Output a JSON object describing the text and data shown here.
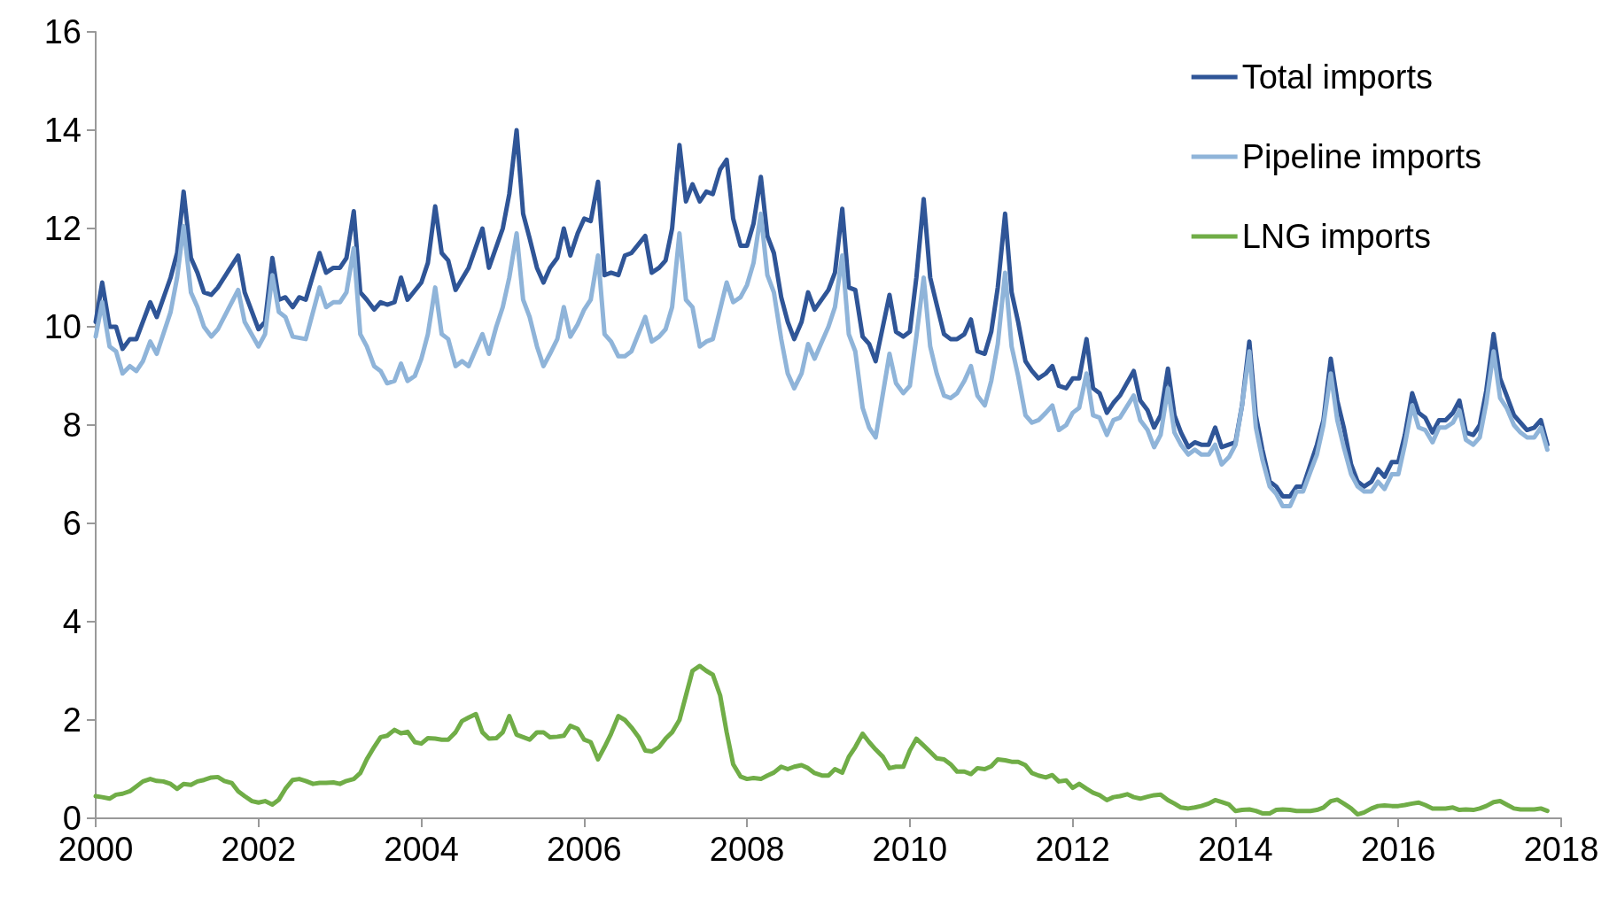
{
  "chart_data": {
    "type": "line",
    "xlim": [
      2000,
      2018
    ],
    "xticks": [
      2000,
      2002,
      2004,
      2006,
      2008,
      2010,
      2012,
      2014,
      2016,
      2018
    ],
    "ylim": [
      0,
      16
    ],
    "yticks": [
      0,
      2,
      4,
      6,
      8,
      10,
      12,
      14,
      16
    ],
    "grid": false,
    "legend": "top right",
    "marker": "none",
    "line_style": "solid",
    "series": [
      {
        "name": "Total imports",
        "color": "#2f5597",
        "x": [
          2000.0,
          2000.08,
          2000.17,
          2000.25,
          2000.33,
          2000.42,
          2000.5,
          2000.67,
          2000.75,
          2000.92,
          2001.0,
          2001.08,
          2001.17,
          2001.25,
          2001.33,
          2001.42,
          2001.5,
          2001.75,
          2001.83,
          2002.0,
          2002.08,
          2002.17,
          2002.25,
          2002.33,
          2002.42,
          2002.5,
          2002.58,
          2002.75,
          2002.83,
          2002.92,
          2003.0,
          2003.08,
          2003.17,
          2003.25,
          2003.33,
          2003.42,
          2003.5,
          2003.58,
          2003.67,
          2003.75,
          2003.83,
          2004.0,
          2004.08,
          2004.17,
          2004.25,
          2004.33,
          2004.42,
          2004.58,
          2004.75,
          2004.83,
          2005.0,
          2005.08,
          2005.17,
          2005.25,
          2005.33,
          2005.42,
          2005.5,
          2005.58,
          2005.67,
          2005.75,
          2005.83,
          2005.92,
          2006.0,
          2006.08,
          2006.17,
          2006.25,
          2006.33,
          2006.42,
          2006.5,
          2006.58,
          2006.75,
          2006.83,
          2006.92,
          2007.0,
          2007.08,
          2007.17,
          2007.25,
          2007.33,
          2007.42,
          2007.5,
          2007.58,
          2007.67,
          2007.75,
          2007.83,
          2007.92,
          2008.0,
          2008.08,
          2008.17,
          2008.25,
          2008.33,
          2008.42,
          2008.5,
          2008.58,
          2008.67,
          2008.75,
          2008.83,
          2009.0,
          2009.08,
          2009.17,
          2009.25,
          2009.33,
          2009.42,
          2009.5,
          2009.58,
          2009.75,
          2009.83,
          2009.92,
          2010.0,
          2010.08,
          2010.17,
          2010.25,
          2010.33,
          2010.42,
          2010.5,
          2010.58,
          2010.67,
          2010.75,
          2010.83,
          2010.92,
          2011.0,
          2011.08,
          2011.17,
          2011.25,
          2011.33,
          2011.42,
          2011.5,
          2011.58,
          2011.67,
          2011.75,
          2011.83,
          2011.92,
          2012.0,
          2012.08,
          2012.17,
          2012.25,
          2012.33,
          2012.42,
          2012.5,
          2012.58,
          2012.75,
          2012.83,
          2012.92,
          2013.0,
          2013.08,
          2013.17,
          2013.25,
          2013.33,
          2013.42,
          2013.5,
          2013.58,
          2013.67,
          2013.75,
          2013.83,
          2014.0,
          2014.08,
          2014.17,
          2014.25,
          2014.33,
          2014.42,
          2014.5,
          2014.58,
          2014.67,
          2014.75,
          2014.83,
          2014.92,
          2015.0,
          2015.08,
          2015.17,
          2015.25,
          2015.33,
          2015.42,
          2015.5,
          2015.58,
          2015.67,
          2015.75,
          2015.83,
          2015.92,
          2016.0,
          2016.08,
          2016.17,
          2016.25,
          2016.33,
          2016.42,
          2016.5,
          2016.58,
          2016.67,
          2016.75,
          2016.83,
          2016.92,
          2017.0,
          2017.08,
          2017.17,
          2017.25,
          2017.33,
          2017.42,
          2017.5,
          2017.58,
          2017.67,
          2017.75,
          2017.83
        ],
        "values": [
          10.1,
          10.9,
          10.0,
          10.0,
          9.55,
          9.75,
          9.75,
          10.5,
          10.2,
          11.0,
          11.5,
          12.75,
          11.4,
          11.1,
          10.7,
          10.65,
          10.8,
          11.45,
          10.7,
          9.95,
          10.1,
          11.4,
          10.55,
          10.6,
          10.4,
          10.6,
          10.55,
          11.5,
          11.1,
          11.2,
          11.2,
          11.4,
          12.35,
          10.7,
          10.55,
          10.35,
          10.5,
          10.45,
          10.5,
          11.0,
          10.55,
          10.9,
          11.3,
          12.45,
          11.5,
          11.35,
          10.75,
          11.2,
          12.0,
          11.2,
          12.0,
          12.7,
          14.0,
          12.3,
          11.8,
          11.2,
          10.9,
          11.2,
          11.4,
          12.0,
          11.45,
          11.9,
          12.2,
          12.15,
          12.95,
          11.05,
          11.1,
          11.05,
          11.45,
          11.5,
          11.85,
          11.1,
          11.2,
          11.35,
          12.0,
          13.7,
          12.55,
          12.9,
          12.55,
          12.75,
          12.7,
          13.2,
          13.4,
          12.2,
          11.65,
          11.65,
          12.1,
          13.05,
          11.85,
          11.5,
          10.6,
          10.1,
          9.75,
          10.1,
          10.7,
          10.35,
          10.75,
          11.1,
          12.4,
          10.8,
          10.75,
          9.8,
          9.65,
          9.3,
          10.65,
          9.9,
          9.8,
          9.9,
          11.0,
          12.6,
          11.0,
          10.45,
          9.85,
          9.75,
          9.75,
          9.85,
          10.15,
          9.5,
          9.45,
          9.9,
          10.8,
          12.3,
          10.7,
          10.1,
          9.3,
          9.1,
          8.95,
          9.05,
          9.2,
          8.8,
          8.75,
          8.95,
          8.95,
          9.75,
          8.75,
          8.65,
          8.25,
          8.45,
          8.6,
          9.1,
          8.5,
          8.3,
          7.95,
          8.2,
          9.15,
          8.2,
          7.85,
          7.55,
          7.65,
          7.6,
          7.6,
          7.95,
          7.55,
          7.65,
          8.4,
          9.7,
          8.2,
          7.5,
          6.85,
          6.75,
          6.55,
          6.55,
          6.75,
          6.75,
          7.2,
          7.6,
          8.1,
          9.35,
          8.5,
          7.95,
          7.2,
          6.85,
          6.75,
          6.85,
          7.1,
          6.95,
          7.25,
          7.25,
          7.8,
          8.65,
          8.25,
          8.15,
          7.85,
          8.1,
          8.1,
          8.25,
          8.5,
          7.85,
          7.8,
          8.0,
          8.7,
          9.85,
          8.95,
          8.6,
          8.2,
          8.05,
          7.9,
          7.95,
          8.1,
          7.6
        ]
      },
      {
        "name": "Pipeline imports",
        "color": "#8fb4d9",
        "x": [
          2000.0,
          2000.08,
          2000.17,
          2000.25,
          2000.33,
          2000.42,
          2000.5,
          2000.58,
          2000.67,
          2000.75,
          2000.92,
          2001.0,
          2001.08,
          2001.17,
          2001.25,
          2001.33,
          2001.42,
          2001.5,
          2001.75,
          2001.83,
          2002.0,
          2002.08,
          2002.17,
          2002.25,
          2002.33,
          2002.42,
          2002.58,
          2002.75,
          2002.83,
          2002.92,
          2003.0,
          2003.08,
          2003.17,
          2003.25,
          2003.33,
          2003.42,
          2003.5,
          2003.58,
          2003.67,
          2003.75,
          2003.83,
          2003.92,
          2004.0,
          2004.08,
          2004.17,
          2004.25,
          2004.33,
          2004.42,
          2004.5,
          2004.58,
          2004.75,
          2004.83,
          2004.92,
          2005.0,
          2005.08,
          2005.17,
          2005.25,
          2005.33,
          2005.42,
          2005.5,
          2005.58,
          2005.67,
          2005.75,
          2005.83,
          2005.92,
          2006.0,
          2006.08,
          2006.17,
          2006.25,
          2006.33,
          2006.42,
          2006.5,
          2006.58,
          2006.75,
          2006.83,
          2006.92,
          2007.0,
          2007.08,
          2007.17,
          2007.25,
          2007.33,
          2007.42,
          2007.5,
          2007.58,
          2007.75,
          2007.83,
          2007.92,
          2008.0,
          2008.08,
          2008.17,
          2008.25,
          2008.33,
          2008.42,
          2008.5,
          2008.58,
          2008.67,
          2008.75,
          2008.83,
          2008.92,
          2009.0,
          2009.08,
          2009.17,
          2009.25,
          2009.33,
          2009.42,
          2009.5,
          2009.58,
          2009.75,
          2009.83,
          2009.92,
          2010.0,
          2010.08,
          2010.17,
          2010.25,
          2010.33,
          2010.42,
          2010.5,
          2010.58,
          2010.67,
          2010.75,
          2010.83,
          2010.92,
          2011.0,
          2011.08,
          2011.17,
          2011.25,
          2011.33,
          2011.42,
          2011.5,
          2011.58,
          2011.67,
          2011.75,
          2011.83,
          2011.92,
          2012.0,
          2012.08,
          2012.17,
          2012.25,
          2012.33,
          2012.42,
          2012.5,
          2012.58,
          2012.75,
          2012.83,
          2012.92,
          2013.0,
          2013.08,
          2013.17,
          2013.25,
          2013.33,
          2013.42,
          2013.5,
          2013.58,
          2013.67,
          2013.75,
          2013.83,
          2013.92,
          2014.0,
          2014.08,
          2014.17,
          2014.25,
          2014.33,
          2014.42,
          2014.5,
          2014.58,
          2014.67,
          2014.75,
          2014.83,
          2014.92,
          2015.0,
          2015.08,
          2015.17,
          2015.25,
          2015.33,
          2015.42,
          2015.5,
          2015.58,
          2015.67,
          2015.75,
          2015.83,
          2015.92,
          2016.0,
          2016.08,
          2016.17,
          2016.25,
          2016.33,
          2016.42,
          2016.5,
          2016.58,
          2016.67,
          2016.75,
          2016.83,
          2016.92,
          2017.0,
          2017.08,
          2017.17,
          2017.25,
          2017.33,
          2017.42,
          2017.5,
          2017.58,
          2017.67,
          2017.75,
          2017.83
        ],
        "values": [
          9.8,
          10.5,
          9.6,
          9.5,
          9.05,
          9.2,
          9.1,
          9.3,
          9.7,
          9.45,
          10.3,
          11.0,
          12.05,
          10.7,
          10.4,
          10.0,
          9.8,
          9.95,
          10.75,
          10.1,
          9.6,
          9.85,
          11.05,
          10.3,
          10.2,
          9.8,
          9.75,
          10.8,
          10.4,
          10.5,
          10.5,
          10.7,
          11.6,
          9.85,
          9.6,
          9.2,
          9.1,
          8.85,
          8.9,
          9.25,
          8.9,
          9.0,
          9.35,
          9.85,
          10.8,
          9.85,
          9.75,
          9.2,
          9.3,
          9.2,
          9.85,
          9.45,
          10.0,
          10.4,
          11.0,
          11.9,
          10.55,
          10.2,
          9.6,
          9.2,
          9.45,
          9.75,
          10.4,
          9.8,
          10.05,
          10.35,
          10.55,
          11.45,
          9.85,
          9.7,
          9.4,
          9.4,
          9.5,
          10.2,
          9.7,
          9.8,
          9.95,
          10.4,
          11.9,
          10.55,
          10.4,
          9.6,
          9.7,
          9.75,
          10.9,
          10.5,
          10.6,
          10.85,
          11.3,
          12.3,
          11.05,
          10.7,
          9.75,
          9.05,
          8.75,
          9.05,
          9.65,
          9.35,
          9.7,
          10.0,
          10.4,
          11.45,
          9.85,
          9.5,
          8.35,
          7.95,
          7.75,
          9.45,
          8.85,
          8.65,
          8.8,
          9.8,
          11.0,
          9.6,
          9.05,
          8.6,
          8.55,
          8.65,
          8.9,
          9.2,
          8.6,
          8.4,
          8.9,
          9.65,
          11.1,
          9.6,
          9.0,
          8.2,
          8.05,
          8.1,
          8.25,
          8.4,
          7.9,
          8.0,
          8.25,
          8.35,
          9.05,
          8.2,
          8.15,
          7.8,
          8.1,
          8.15,
          8.6,
          8.1,
          7.9,
          7.55,
          7.8,
          8.75,
          7.85,
          7.6,
          7.4,
          7.5,
          7.4,
          7.4,
          7.6,
          7.2,
          7.35,
          7.6,
          8.4,
          9.5,
          7.95,
          7.3,
          6.75,
          6.6,
          6.35,
          6.35,
          6.65,
          6.65,
          7.05,
          7.4,
          8.0,
          9.05,
          8.1,
          7.55,
          7.0,
          6.75,
          6.65,
          6.65,
          6.85,
          6.7,
          7.0,
          7.0,
          7.6,
          8.4,
          7.95,
          7.9,
          7.65,
          7.95,
          7.95,
          8.05,
          8.3,
          7.7,
          7.6,
          7.75,
          8.45,
          9.5,
          8.55,
          8.35,
          8.0,
          7.85,
          7.75,
          7.75,
          7.95,
          7.5
        ]
      },
      {
        "name": "LNG imports",
        "color": "#70ad47",
        "x": [
          2000.0,
          2000.08,
          2000.17,
          2000.25,
          2000.33,
          2000.42,
          2000.5,
          2000.58,
          2000.67,
          2000.75,
          2000.83,
          2000.92,
          2001.0,
          2001.08,
          2001.17,
          2001.25,
          2001.33,
          2001.42,
          2001.5,
          2001.58,
          2001.67,
          2001.75,
          2001.83,
          2001.92,
          2002.0,
          2002.08,
          2002.17,
          2002.25,
          2002.33,
          2002.42,
          2002.5,
          2002.58,
          2002.67,
          2002.75,
          2002.83,
          2002.92,
          2003.0,
          2003.08,
          2003.17,
          2003.25,
          2003.33,
          2003.42,
          2003.5,
          2003.58,
          2003.67,
          2003.75,
          2003.83,
          2003.92,
          2004.0,
          2004.08,
          2004.17,
          2004.25,
          2004.33,
          2004.42,
          2004.5,
          2004.58,
          2004.67,
          2004.75,
          2004.83,
          2004.92,
          2005.0,
          2005.08,
          2005.17,
          2005.25,
          2005.33,
          2005.42,
          2005.5,
          2005.58,
          2005.67,
          2005.75,
          2005.83,
          2005.92,
          2006.0,
          2006.08,
          2006.17,
          2006.25,
          2006.33,
          2006.42,
          2006.5,
          2006.58,
          2006.67,
          2006.75,
          2006.83,
          2006.92,
          2007.0,
          2007.08,
          2007.17,
          2007.25,
          2007.33,
          2007.42,
          2007.5,
          2007.58,
          2007.67,
          2007.75,
          2007.83,
          2007.92,
          2008.0,
          2008.08,
          2008.17,
          2008.25,
          2008.33,
          2008.42,
          2008.5,
          2008.58,
          2008.67,
          2008.75,
          2008.83,
          2008.92,
          2009.0,
          2009.08,
          2009.17,
          2009.25,
          2009.33,
          2009.42,
          2009.5,
          2009.58,
          2009.67,
          2009.75,
          2009.83,
          2009.92,
          2010.0,
          2010.08,
          2010.17,
          2010.25,
          2010.33,
          2010.42,
          2010.5,
          2010.58,
          2010.67,
          2010.75,
          2010.83,
          2010.92,
          2011.0,
          2011.08,
          2011.17,
          2011.25,
          2011.33,
          2011.42,
          2011.5,
          2011.58,
          2011.67,
          2011.75,
          2011.83,
          2011.92,
          2012.0,
          2012.08,
          2012.17,
          2012.25,
          2012.33,
          2012.42,
          2012.5,
          2012.58,
          2012.67,
          2012.75,
          2012.83,
          2012.92,
          2013.0,
          2013.08,
          2013.17,
          2013.25,
          2013.33,
          2013.42,
          2013.5,
          2013.58,
          2013.67,
          2013.75,
          2013.83,
          2013.92,
          2014.0,
          2014.08,
          2014.17,
          2014.25,
          2014.33,
          2014.42,
          2014.5,
          2014.58,
          2014.67,
          2014.75,
          2014.83,
          2014.92,
          2015.0,
          2015.08,
          2015.17,
          2015.25,
          2015.33,
          2015.42,
          2015.5,
          2015.58,
          2015.67,
          2015.75,
          2015.83,
          2015.92,
          2016.0,
          2016.08,
          2016.17,
          2016.25,
          2016.33,
          2016.42,
          2016.5,
          2016.58,
          2016.67,
          2016.75,
          2016.83,
          2016.92,
          2017.0,
          2017.08,
          2017.17,
          2017.25,
          2017.33,
          2017.42,
          2017.5,
          2017.58,
          2017.67,
          2017.75,
          2017.83
        ],
        "values": [
          0.45,
          0.43,
          0.4,
          0.48,
          0.5,
          0.55,
          0.65,
          0.75,
          0.8,
          0.76,
          0.75,
          0.7,
          0.6,
          0.7,
          0.68,
          0.75,
          0.78,
          0.83,
          0.84,
          0.76,
          0.72,
          0.55,
          0.45,
          0.35,
          0.32,
          0.35,
          0.28,
          0.38,
          0.6,
          0.78,
          0.8,
          0.76,
          0.7,
          0.72,
          0.72,
          0.73,
          0.7,
          0.76,
          0.8,
          0.92,
          1.2,
          1.45,
          1.65,
          1.68,
          1.8,
          1.73,
          1.76,
          1.55,
          1.52,
          1.63,
          1.62,
          1.6,
          1.6,
          1.75,
          1.98,
          2.05,
          2.12,
          1.75,
          1.62,
          1.63,
          1.75,
          2.08,
          1.7,
          1.65,
          1.6,
          1.75,
          1.75,
          1.65,
          1.66,
          1.68,
          1.88,
          1.82,
          1.6,
          1.55,
          1.2,
          1.45,
          1.72,
          2.08,
          2.0,
          1.85,
          1.65,
          1.38,
          1.36,
          1.45,
          1.62,
          1.75,
          2.0,
          2.5,
          3.0,
          3.1,
          3.0,
          2.92,
          2.5,
          1.75,
          1.1,
          0.85,
          0.8,
          0.82,
          0.8,
          0.87,
          0.93,
          1.05,
          1.0,
          1.05,
          1.08,
          1.02,
          0.92,
          0.87,
          0.87,
          1.0,
          0.93,
          1.25,
          1.45,
          1.72,
          1.55,
          1.4,
          1.25,
          1.02,
          1.05,
          1.05,
          1.38,
          1.62,
          1.48,
          1.35,
          1.22,
          1.2,
          1.1,
          0.95,
          0.95,
          0.9,
          1.02,
          1.0,
          1.06,
          1.2,
          1.18,
          1.15,
          1.15,
          1.08,
          0.92,
          0.87,
          0.83,
          0.88,
          0.75,
          0.77,
          0.62,
          0.7,
          0.6,
          0.52,
          0.47,
          0.37,
          0.43,
          0.45,
          0.49,
          0.43,
          0.4,
          0.44,
          0.47,
          0.48,
          0.37,
          0.3,
          0.22,
          0.2,
          0.22,
          0.25,
          0.3,
          0.37,
          0.33,
          0.28,
          0.15,
          0.17,
          0.18,
          0.15,
          0.1,
          0.1,
          0.17,
          0.18,
          0.17,
          0.15,
          0.15,
          0.15,
          0.17,
          0.22,
          0.35,
          0.38,
          0.3,
          0.2,
          0.08,
          0.12,
          0.2,
          0.25,
          0.26,
          0.25,
          0.25,
          0.27,
          0.3,
          0.32,
          0.27,
          0.2,
          0.2,
          0.2,
          0.22,
          0.17,
          0.18,
          0.17,
          0.2,
          0.25,
          0.33,
          0.35,
          0.28,
          0.2,
          0.18,
          0.18,
          0.18,
          0.2,
          0.15
        ]
      }
    ]
  }
}
